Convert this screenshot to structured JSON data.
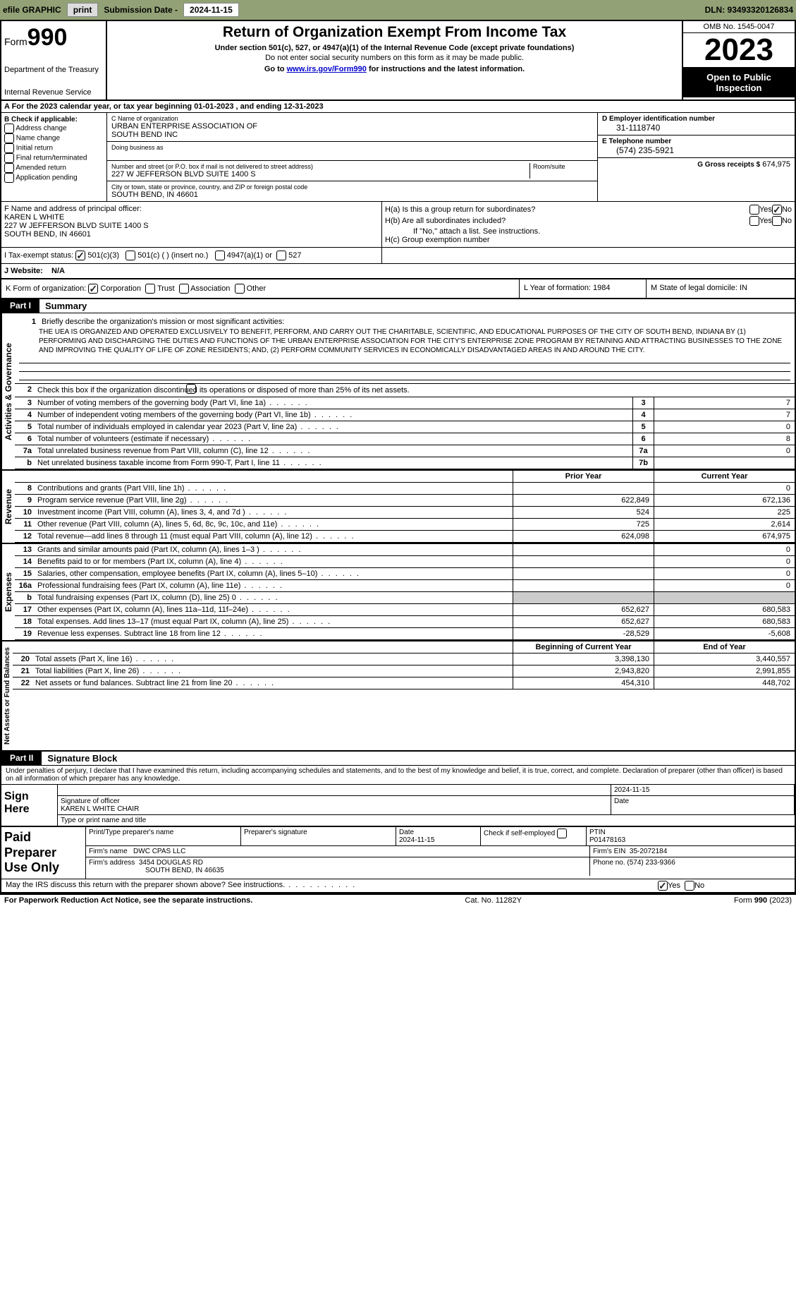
{
  "topbar": {
    "efile": "efile GRAPHIC",
    "print": "print",
    "sub_label": "Submission Date - ",
    "sub_date": "2024-11-15",
    "dln": "DLN: 93493320126834"
  },
  "header": {
    "form_word": "Form",
    "form_num": "990",
    "dept": "Department of the Treasury",
    "irs": "Internal Revenue Service",
    "title": "Return of Organization Exempt From Income Tax",
    "sub1": "Under section 501(c), 527, or 4947(a)(1) of the Internal Revenue Code (except private foundations)",
    "sub2": "Do not enter social security numbers on this form as it may be made public.",
    "sub3_pre": "Go to ",
    "sub3_link": "www.irs.gov/Form990",
    "sub3_post": " for instructions and the latest information.",
    "omb": "OMB No. 1545-0047",
    "year": "2023",
    "open": "Open to Public Inspection"
  },
  "section_a": {
    "text": "A For the 2023 calendar year, or tax year beginning 01-01-2023    , and ending 12-31-2023"
  },
  "section_b": {
    "label": "B Check if applicable:",
    "opts": [
      "Address change",
      "Name change",
      "Initial return",
      "Final return/terminated",
      "Amended return",
      "Application pending"
    ]
  },
  "section_c": {
    "name_label": "C Name of organization",
    "name1": "URBAN ENTERPRISE ASSOCIATION OF",
    "name2": "SOUTH BEND INC",
    "dba_label": "Doing business as",
    "addr_label": "Number and street (or P.O. box if mail is not delivered to street address)",
    "room_label": "Room/suite",
    "addr": "227 W JEFFERSON BLVD SUITE 1400 S",
    "city_label": "City or town, state or province, country, and ZIP or foreign postal code",
    "city": "SOUTH BEND, IN  46601"
  },
  "section_d": {
    "label": "D Employer identification number",
    "value": "31-1118740"
  },
  "section_e": {
    "label": "E Telephone number",
    "value": "(574) 235-5921"
  },
  "section_g": {
    "label": "G Gross receipts $",
    "value": "674,975"
  },
  "section_f": {
    "label": "F Name and address of principal officer:",
    "name": "KAREN L WHITE",
    "addr1": "227 W JEFFERSON BLVD SUITE 1400 S",
    "addr2": "SOUTH BEND, IN  46601"
  },
  "section_h": {
    "a_label": "H(a)  Is this a group return for subordinates?",
    "b_label": "H(b)  Are all subordinates included?",
    "b_note": "If \"No,\" attach a list. See instructions.",
    "c_label": "H(c)  Group exemption number",
    "yes": "Yes",
    "no": "No"
  },
  "section_i": {
    "label": "I   Tax-exempt status:",
    "opt1": "501(c)(3)",
    "opt2": "501(c) (  ) (insert no.)",
    "opt3": "4947(a)(1) or",
    "opt4": "527"
  },
  "section_j": {
    "label": "J   Website:",
    "value": "N/A"
  },
  "section_k": {
    "label": "K Form of organization:",
    "corp": "Corporation",
    "trust": "Trust",
    "assoc": "Association",
    "other": "Other"
  },
  "section_l": {
    "label": "L Year of formation: 1984"
  },
  "section_m": {
    "label": "M State of legal domicile: IN"
  },
  "part1": {
    "header": "Part I",
    "title": "Summary",
    "vlabel1": "Activities & Governance",
    "vlabel2": "Revenue",
    "vlabel3": "Expenses",
    "vlabel4": "Net Assets or Fund Balances",
    "line1_label": "Briefly describe the organization's mission or most significant activities:",
    "mission": "THE UEA IS ORGANIZED AND OPERATED EXCLUSIVELY TO BENEFIT, PERFORM, AND CARRY OUT THE CHARITABLE, SCIENTIFIC, AND EDUCATIONAL PURPOSES OF THE CITY OF SOUTH BEND, INDIANA BY (1) PERFORMING AND DISCHARGING THE DUTIES AND FUNCTIONS OF THE URBAN ENTERPRISE ASSOCIATION FOR THE CITY'S ENTERPRISE ZONE PROGRAM BY RETAINING AND ATTRACTING BUSINESSES TO THE ZONE AND IMPROVING THE QUALITY OF LIFE OF ZONE RESIDENTS; AND, (2) PERFORM COMMUNITY SERVICES IN ECONOMICALLY DISADVANTAGED AREAS IN AND AROUND THE CITY.",
    "line2": "Check this box        if the organization discontinued its operations or disposed of more than 25% of its net assets.",
    "rows_ag": [
      {
        "n": "3",
        "label": "Number of voting members of the governing body (Part VI, line 1a)",
        "box": "3",
        "val": "7"
      },
      {
        "n": "4",
        "label": "Number of independent voting members of the governing body (Part VI, line 1b)",
        "box": "4",
        "val": "7"
      },
      {
        "n": "5",
        "label": "Total number of individuals employed in calendar year 2023 (Part V, line 2a)",
        "box": "5",
        "val": "0"
      },
      {
        "n": "6",
        "label": "Total number of volunteers (estimate if necessary)",
        "box": "6",
        "val": "8"
      },
      {
        "n": "7a",
        "label": "Total unrelated business revenue from Part VIII, column (C), line 12",
        "box": "7a",
        "val": "0"
      },
      {
        "n": "b",
        "label": "Net unrelated business taxable income from Form 990-T, Part I, line 11",
        "box": "7b",
        "val": ""
      }
    ],
    "prior_year": "Prior Year",
    "current_year": "Current Year",
    "rows_rev": [
      {
        "n": "8",
        "label": "Contributions and grants (Part VIII, line 1h)",
        "py": "",
        "cy": "0"
      },
      {
        "n": "9",
        "label": "Program service revenue (Part VIII, line 2g)",
        "py": "622,849",
        "cy": "672,136"
      },
      {
        "n": "10",
        "label": "Investment income (Part VIII, column (A), lines 3, 4, and 7d )",
        "py": "524",
        "cy": "225"
      },
      {
        "n": "11",
        "label": "Other revenue (Part VIII, column (A), lines 5, 6d, 8c, 9c, 10c, and 11e)",
        "py": "725",
        "cy": "2,614"
      },
      {
        "n": "12",
        "label": "Total revenue—add lines 8 through 11 (must equal Part VIII, column (A), line 12)",
        "py": "624,098",
        "cy": "674,975"
      }
    ],
    "rows_exp": [
      {
        "n": "13",
        "label": "Grants and similar amounts paid (Part IX, column (A), lines 1–3 )",
        "py": "",
        "cy": "0"
      },
      {
        "n": "14",
        "label": "Benefits paid to or for members (Part IX, column (A), line 4)",
        "py": "",
        "cy": "0"
      },
      {
        "n": "15",
        "label": "Salaries, other compensation, employee benefits (Part IX, column (A), lines 5–10)",
        "py": "",
        "cy": "0"
      },
      {
        "n": "16a",
        "label": "Professional fundraising fees (Part IX, column (A), line 11e)",
        "py": "",
        "cy": "0"
      },
      {
        "n": "b",
        "label": "Total fundraising expenses (Part IX, column (D), line 25) 0",
        "py": "GRAY",
        "cy": "GRAY"
      },
      {
        "n": "17",
        "label": "Other expenses (Part IX, column (A), lines 11a–11d, 11f–24e)",
        "py": "652,627",
        "cy": "680,583"
      },
      {
        "n": "18",
        "label": "Total expenses. Add lines 13–17 (must equal Part IX, column (A), line 25)",
        "py": "652,627",
        "cy": "680,583"
      },
      {
        "n": "19",
        "label": "Revenue less expenses. Subtract line 18 from line 12",
        "py": "-28,529",
        "cy": "-5,608"
      }
    ],
    "beg_year": "Beginning of Current Year",
    "end_year": "End of Year",
    "rows_na": [
      {
        "n": "20",
        "label": "Total assets (Part X, line 16)",
        "py": "3,398,130",
        "cy": "3,440,557"
      },
      {
        "n": "21",
        "label": "Total liabilities (Part X, line 26)",
        "py": "2,943,820",
        "cy": "2,991,855"
      },
      {
        "n": "22",
        "label": "Net assets or fund balances. Subtract line 21 from line 20",
        "py": "454,310",
        "cy": "448,702"
      }
    ]
  },
  "part2": {
    "header": "Part II",
    "title": "Signature Block",
    "declaration": "Under penalties of perjury, I declare that I have examined this return, including accompanying schedules and statements, and to the best of my knowledge and belief, it is true, correct, and complete. Declaration of preparer (other than officer) is based on all information of which preparer has any knowledge.",
    "sign_here": "Sign Here",
    "sig_date": "2024-11-15",
    "sig_officer_label": "Signature of officer",
    "sig_name": "KAREN L WHITE  CHAIR",
    "sig_title_label": "Type or print name and title",
    "date_label": "Date",
    "paid": "Paid Preparer Use Only",
    "prep_name_label": "Print/Type preparer's name",
    "prep_sig_label": "Preparer's signature",
    "prep_date_label": "Date",
    "prep_date": "2024-11-15",
    "check_self": "Check          if self-employed",
    "ptin_label": "PTIN",
    "ptin": "P01478163",
    "firm_name_label": "Firm's name",
    "firm_name": "DWC CPAS LLC",
    "firm_ein_label": "Firm's EIN",
    "firm_ein": "35-2072184",
    "firm_addr_label": "Firm's address",
    "firm_addr1": "3454 DOUGLAS RD",
    "firm_addr2": "SOUTH BEND, IN  46635",
    "phone_label": "Phone no.",
    "phone": "(574) 233-9366",
    "may_irs": "May the IRS discuss this return with the preparer shown above? See instructions.",
    "yes": "Yes",
    "no": "No"
  },
  "footer": {
    "left": "For Paperwork Reduction Act Notice, see the separate instructions.",
    "center": "Cat. No. 11282Y",
    "right": "Form 990 (2023)"
  }
}
